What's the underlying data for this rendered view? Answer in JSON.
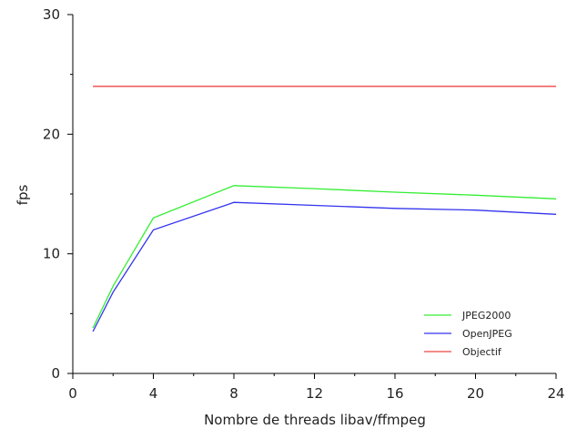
{
  "chart_data": {
    "type": "line",
    "xlabel": "Nombre de threads libav/ffmpeg",
    "ylabel": "fps",
    "xlim": [
      0,
      24
    ],
    "ylim": [
      0,
      30
    ],
    "xticks": [
      0,
      4,
      8,
      12,
      16,
      20,
      24
    ],
    "yticks": [
      0,
      10,
      20,
      30
    ],
    "grid": false,
    "legend_position": "bottom-right",
    "series": [
      {
        "name": "JPEG2000",
        "color": "#33ee33",
        "x": [
          1,
          2,
          4,
          8,
          12,
          16,
          20,
          24
        ],
        "y": [
          3.8,
          7.3,
          13.0,
          15.7,
          15.45,
          15.15,
          14.9,
          14.6
        ]
      },
      {
        "name": "OpenJPEG",
        "color": "#3333ee",
        "x": [
          1,
          2,
          4,
          8,
          12,
          16,
          20,
          24
        ],
        "y": [
          3.5,
          6.8,
          12.0,
          14.3,
          14.05,
          13.8,
          13.65,
          13.3
        ]
      },
      {
        "name": "Objectif",
        "color": "#ee4444",
        "x": [
          1,
          24
        ],
        "y": [
          24,
          24
        ]
      }
    ]
  }
}
